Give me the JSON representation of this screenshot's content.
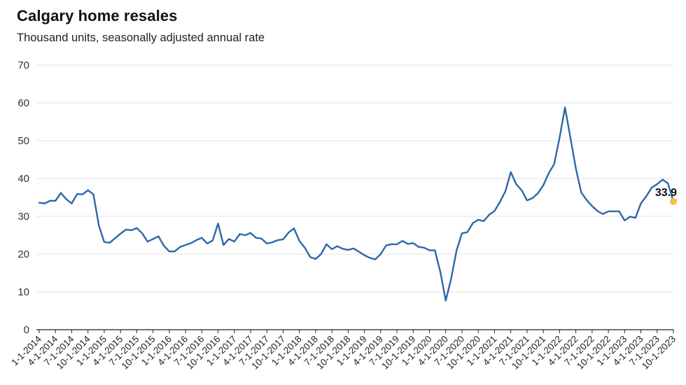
{
  "header": {
    "title": "Calgary home resales",
    "subtitle": "Thousand units, seasonally adjusted annual rate"
  },
  "chart_data": {
    "type": "line",
    "title": "Calgary home resales",
    "subtitle": "Thousand units, seasonally adjusted annual rate",
    "xlabel": "",
    "ylabel": "",
    "ylim": [
      0,
      70
    ],
    "yticks": [
      0,
      10,
      20,
      30,
      40,
      50,
      60,
      70
    ],
    "grid": true,
    "line_color": "#2f67a8",
    "highlight_color": "#f2c14e",
    "x_tick_labels": [
      "1-1-2014",
      "4-1-2014",
      "7-1-2014",
      "10-1-2014",
      "1-1-2015",
      "4-1-2015",
      "7-1-2015",
      "10-1-2015",
      "1-1-2016",
      "4-1-2016",
      "7-1-2016",
      "10-1-2016",
      "1-1-2017",
      "4-1-2017",
      "7-1-2017",
      "10-1-2017",
      "1-1-2018",
      "4-1-2018",
      "7-1-2018",
      "10-1-2018",
      "1-1-2019",
      "4-1-2019",
      "7-1-2019",
      "10-1-2019",
      "1-1-2020",
      "4-1-2020",
      "7-1-2020",
      "10-1-2020",
      "1-1-2021",
      "4-1-2021",
      "7-1-2021",
      "10-1-2021",
      "1-1-2022",
      "4-1-2022",
      "7-1-2022",
      "10-1-2022",
      "1-1-2023",
      "4-1-2023",
      "7-1-2023",
      "10-1-2023"
    ],
    "series": [
      {
        "name": "Calgary home resales",
        "start": "1-1-2014",
        "frequency": "monthly",
        "values": [
          33.6,
          33.4,
          34.1,
          34.1,
          36.2,
          34.5,
          33.4,
          35.9,
          35.8,
          36.9,
          35.8,
          27.6,
          23.2,
          23.0,
          24.2,
          25.4,
          26.5,
          26.3,
          26.9,
          25.5,
          23.3,
          24.0,
          24.7,
          22.2,
          20.7,
          20.7,
          21.9,
          22.4,
          22.9,
          23.7,
          24.3,
          22.8,
          23.6,
          28.1,
          22.4,
          24.0,
          23.3,
          25.3,
          25.0,
          25.6,
          24.3,
          24.1,
          22.8,
          23.1,
          23.7,
          23.9,
          25.7,
          26.8,
          23.5,
          21.7,
          19.2,
          18.7,
          20.0,
          22.6,
          21.3,
          22.1,
          21.4,
          21.1,
          21.5,
          20.6,
          19.7,
          19.0,
          18.6,
          20.0,
          22.3,
          22.6,
          22.6,
          23.5,
          22.7,
          22.9,
          21.9,
          21.7,
          21.0,
          21.0,
          15.3,
          7.7,
          13.5,
          21.0,
          25.5,
          25.8,
          28.2,
          29.1,
          28.7,
          30.4,
          31.4,
          33.8,
          36.6,
          41.7,
          38.5,
          36.9,
          34.2,
          34.8,
          36.1,
          38.2,
          41.4,
          43.8,
          50.8,
          58.8,
          50.8,
          42.7,
          36.3,
          34.3,
          32.7,
          31.4,
          30.6,
          31.3,
          31.3,
          31.3,
          28.9,
          29.9,
          29.6,
          33.4,
          35.3,
          37.6,
          38.5,
          39.7,
          38.7,
          33.9
        ]
      }
    ],
    "annotation": {
      "text": "33.9",
      "x": "11-1-2023",
      "value": 33.9
    }
  }
}
